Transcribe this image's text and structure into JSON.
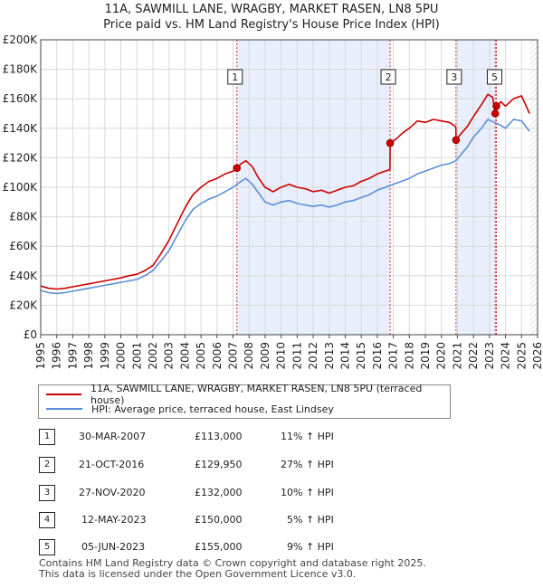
{
  "chart_data": {
    "type": "line",
    "title": "11A, SAWMILL LANE, WRAGBY, MARKET RASEN, LN8 5PU",
    "subtitle": "Price paid vs. HM Land Registry's House Price Index (HPI)",
    "xlim": [
      1995,
      2026
    ],
    "ylim": [
      0,
      200000
    ],
    "x_ticks": [
      "1995",
      "1996",
      "1997",
      "1998",
      "1999",
      "2000",
      "2001",
      "2002",
      "2003",
      "2004",
      "2005",
      "2006",
      "2007",
      "2008",
      "2009",
      "2010",
      "2011",
      "2012",
      "2013",
      "2014",
      "2015",
      "2016",
      "2017",
      "2018",
      "2019",
      "2020",
      "2021",
      "2022",
      "2023",
      "2024",
      "2025",
      "2026"
    ],
    "y_ticks": [
      {
        "value": 0,
        "label": "£0"
      },
      {
        "value": 20000,
        "label": "£20K"
      },
      {
        "value": 40000,
        "label": "£40K"
      },
      {
        "value": 60000,
        "label": "£60K"
      },
      {
        "value": 80000,
        "label": "£80K"
      },
      {
        "value": 100000,
        "label": "£100K"
      },
      {
        "value": 120000,
        "label": "£120K"
      },
      {
        "value": 140000,
        "label": "£140K"
      },
      {
        "value": 160000,
        "label": "£160K"
      },
      {
        "value": 180000,
        "label": "£180K"
      },
      {
        "value": 200000,
        "label": "£200K"
      }
    ],
    "series": [
      {
        "name": "11A, SAWMILL LANE, WRAGBY, MARKET RASEN, LN8 5PU (terraced house)",
        "color": "#cc0000",
        "points": [
          [
            1995.0,
            33000
          ],
          [
            1995.5,
            31500
          ],
          [
            1996.0,
            31000
          ],
          [
            1996.5,
            31500
          ],
          [
            1997.0,
            32500
          ],
          [
            1997.5,
            33500
          ],
          [
            1998.0,
            34500
          ],
          [
            1998.5,
            35500
          ],
          [
            1999.0,
            36500
          ],
          [
            1999.5,
            37500
          ],
          [
            2000.0,
            38500
          ],
          [
            2000.5,
            40000
          ],
          [
            2001.0,
            41000
          ],
          [
            2001.5,
            43500
          ],
          [
            2002.0,
            47000
          ],
          [
            2002.5,
            55000
          ],
          [
            2003.0,
            64000
          ],
          [
            2003.5,
            75000
          ],
          [
            2004.0,
            86000
          ],
          [
            2004.5,
            95000
          ],
          [
            2005.0,
            100000
          ],
          [
            2005.5,
            104000
          ],
          [
            2006.0,
            106000
          ],
          [
            2006.5,
            109000
          ],
          [
            2007.0,
            111000
          ],
          [
            2007.24,
            113000
          ],
          [
            2007.5,
            116000
          ],
          [
            2007.8,
            118000
          ],
          [
            2008.2,
            114000
          ],
          [
            2008.6,
            106000
          ],
          [
            2009.0,
            100000
          ],
          [
            2009.5,
            97000
          ],
          [
            2010.0,
            100000
          ],
          [
            2010.5,
            102000
          ],
          [
            2011.0,
            100000
          ],
          [
            2011.5,
            99000
          ],
          [
            2012.0,
            97000
          ],
          [
            2012.5,
            98000
          ],
          [
            2013.0,
            96000
          ],
          [
            2013.5,
            98000
          ],
          [
            2014.0,
            100000
          ],
          [
            2014.5,
            101000
          ],
          [
            2015.0,
            104000
          ],
          [
            2015.5,
            106000
          ],
          [
            2016.0,
            109000
          ],
          [
            2016.5,
            111000
          ],
          [
            2016.79,
            112000
          ],
          [
            2016.8,
            129950
          ],
          [
            2017.2,
            133000
          ],
          [
            2017.6,
            137000
          ],
          [
            2018.0,
            140000
          ],
          [
            2018.5,
            145000
          ],
          [
            2019.0,
            144000
          ],
          [
            2019.5,
            146000
          ],
          [
            2020.0,
            145000
          ],
          [
            2020.5,
            144000
          ],
          [
            2020.9,
            141000
          ],
          [
            2020.91,
            132000
          ],
          [
            2021.2,
            136000
          ],
          [
            2021.6,
            141000
          ],
          [
            2022.0,
            148000
          ],
          [
            2022.5,
            156000
          ],
          [
            2022.9,
            163000
          ],
          [
            2023.2,
            161000
          ],
          [
            2023.36,
            150000
          ],
          [
            2023.43,
            155000
          ],
          [
            2023.7,
            158000
          ],
          [
            2024.0,
            155000
          ],
          [
            2024.5,
            160000
          ],
          [
            2025.0,
            162000
          ],
          [
            2025.5,
            150000
          ]
        ]
      },
      {
        "name": "HPI: Average price, terraced house, East Lindsey",
        "color": "#5b8ed6",
        "points": [
          [
            1995.0,
            30000
          ],
          [
            1995.5,
            28500
          ],
          [
            1996.0,
            28000
          ],
          [
            1996.5,
            28500
          ],
          [
            1997.0,
            29500
          ],
          [
            1997.5,
            30500
          ],
          [
            1998.0,
            31500
          ],
          [
            1998.5,
            32500
          ],
          [
            1999.0,
            33500
          ],
          [
            1999.5,
            34500
          ],
          [
            2000.0,
            35500
          ],
          [
            2000.5,
            36500
          ],
          [
            2001.0,
            37500
          ],
          [
            2001.5,
            40000
          ],
          [
            2002.0,
            43500
          ],
          [
            2002.5,
            50000
          ],
          [
            2003.0,
            57000
          ],
          [
            2003.5,
            67000
          ],
          [
            2004.0,
            77000
          ],
          [
            2004.5,
            85000
          ],
          [
            2005.0,
            89000
          ],
          [
            2005.5,
            92000
          ],
          [
            2006.0,
            94000
          ],
          [
            2006.5,
            97000
          ],
          [
            2007.0,
            100000
          ],
          [
            2007.5,
            104000
          ],
          [
            2007.8,
            106000
          ],
          [
            2008.2,
            102000
          ],
          [
            2008.6,
            96000
          ],
          [
            2009.0,
            90000
          ],
          [
            2009.5,
            88000
          ],
          [
            2010.0,
            90000
          ],
          [
            2010.5,
            91000
          ],
          [
            2011.0,
            89000
          ],
          [
            2011.5,
            88000
          ],
          [
            2012.0,
            87000
          ],
          [
            2012.5,
            88000
          ],
          [
            2013.0,
            86500
          ],
          [
            2013.5,
            88000
          ],
          [
            2014.0,
            90000
          ],
          [
            2014.5,
            91000
          ],
          [
            2015.0,
            93000
          ],
          [
            2015.5,
            95000
          ],
          [
            2016.0,
            98000
          ],
          [
            2016.5,
            100000
          ],
          [
            2017.0,
            102000
          ],
          [
            2017.5,
            104000
          ],
          [
            2018.0,
            106000
          ],
          [
            2018.5,
            109000
          ],
          [
            2019.0,
            111000
          ],
          [
            2019.5,
            113000
          ],
          [
            2020.0,
            115000
          ],
          [
            2020.5,
            116000
          ],
          [
            2020.9,
            118000
          ],
          [
            2021.2,
            122000
          ],
          [
            2021.6,
            127000
          ],
          [
            2022.0,
            134000
          ],
          [
            2022.5,
            140000
          ],
          [
            2022.9,
            146000
          ],
          [
            2023.3,
            144000
          ],
          [
            2023.7,
            142000
          ],
          [
            2024.0,
            140000
          ],
          [
            2024.5,
            146000
          ],
          [
            2025.0,
            145000
          ],
          [
            2025.5,
            138000
          ]
        ]
      }
    ],
    "sales": [
      {
        "id": "1",
        "x": 2007.24,
        "price": 113000,
        "date": "30-MAR-2007",
        "price_label": "£113,000",
        "hpi": "11% ↑ HPI"
      },
      {
        "id": "2",
        "x": 2016.8,
        "price": 129950,
        "date": "21-OCT-2016",
        "price_label": "£129,950",
        "hpi": "27% ↑ HPI"
      },
      {
        "id": "3",
        "x": 2020.91,
        "price": 132000,
        "date": "27-NOV-2020",
        "price_label": "£132,000",
        "hpi": "10% ↑ HPI"
      },
      {
        "id": "4",
        "x": 2023.36,
        "price": 150000,
        "date": "12-MAY-2023",
        "price_label": "£150,000",
        "hpi": "5% ↑ HPI"
      },
      {
        "id": "5",
        "x": 2023.43,
        "price": 155000,
        "date": "05-JUN-2023",
        "price_label": "£155,000",
        "hpi": "9% ↑ HPI"
      }
    ],
    "marker_labels": [
      {
        "id": "1",
        "x": 2007.24
      },
      {
        "id": "2",
        "x": 2016.8
      },
      {
        "id": "3",
        "x": 2020.91
      },
      {
        "id": "5",
        "x": 2023.43
      }
    ],
    "shaded_regions": [
      [
        2007.24,
        2016.8
      ],
      [
        2020.91,
        2023.43
      ]
    ],
    "future_hatch_from": 2025.5
  },
  "legend": {
    "property_label": "11A, SAWMILL LANE, WRAGBY, MARKET RASEN, LN8 5PU (terraced house)",
    "hpi_label": "HPI: Average price, terraced house, East Lindsey"
  },
  "footer": {
    "line1": "Contains HM Land Registry data © Crown copyright and database right 2025.",
    "line2": "This data is licensed under the Open Government Licence v3.0."
  }
}
